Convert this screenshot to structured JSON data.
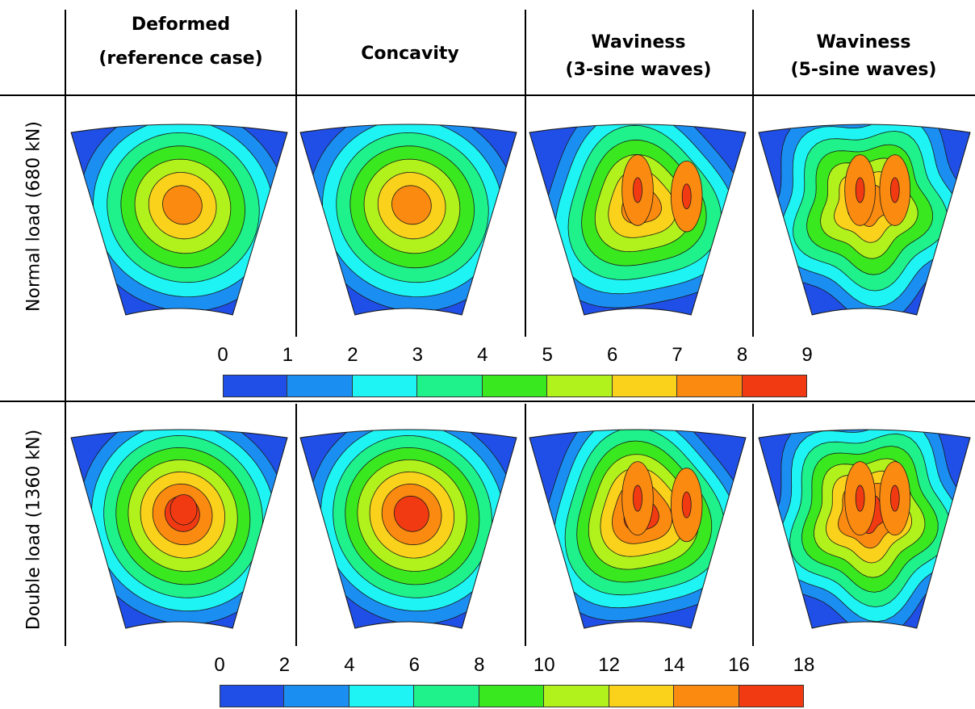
{
  "columns": [
    {
      "line1": "Deformed",
      "line2": "(reference case)",
      "type": "ref"
    },
    {
      "line1": "Concavity",
      "line2": "",
      "type": "concave"
    },
    {
      "line1": "Waviness",
      "line2": "(3-sine waves)",
      "type": "wave3"
    },
    {
      "line1": "Waviness",
      "line2": "(5-sine waves)",
      "type": "wave5"
    }
  ],
  "rows": [
    {
      "label": "Normal load (680 kN)",
      "load": "normal",
      "colorbar": {
        "ticks": [
          "0",
          "1",
          "2",
          "3",
          "4",
          "5",
          "6",
          "7",
          "8",
          "9"
        ]
      }
    },
    {
      "label": "Double load (1360 kN)",
      "load": "double",
      "colorbar": {
        "ticks": [
          "0",
          "2",
          "4",
          "6",
          "8",
          "10",
          "12",
          "14",
          "16",
          "18"
        ]
      }
    }
  ],
  "palette": [
    "#1f4fe6",
    "#1b8ef2",
    "#1ef4f4",
    "#1ff28a",
    "#3ae81f",
    "#b2f21c",
    "#fad21b",
    "#fb8a10",
    "#f23a12"
  ]
}
